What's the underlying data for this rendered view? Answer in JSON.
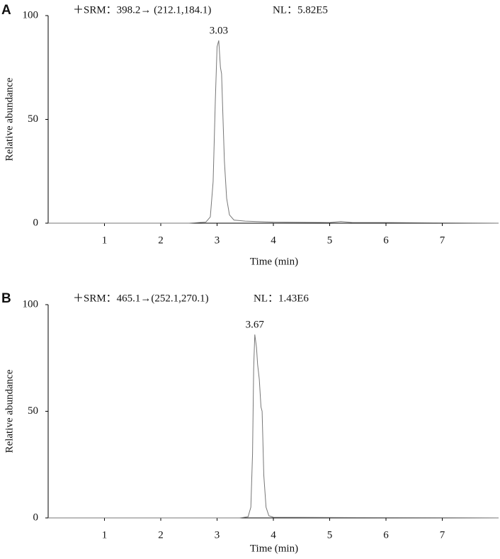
{
  "chart_data": [
    {
      "type": "line",
      "panel_label": "A",
      "header": "＋SRM：398.2→ (212.1,184.1)",
      "nl": "NL：5.82E5",
      "x_label": "Time (min)",
      "y_label": "Relative abundance",
      "peak_label": "3.03",
      "xlim": [
        0,
        8
      ],
      "ylim": [
        0,
        100
      ],
      "xticks": [
        1,
        2,
        3,
        4,
        5,
        6,
        7
      ],
      "yticks": [
        0,
        50,
        100
      ],
      "series": [
        {
          "color": "#777777",
          "x": [
            0,
            2.5,
            2.8,
            2.88,
            2.93,
            2.97,
            3.0,
            3.03,
            3.06,
            3.08,
            3.1,
            3.13,
            3.17,
            3.22,
            3.3,
            3.5,
            4.0,
            5.0,
            5.2,
            5.4,
            6.0,
            8.0
          ],
          "values": [
            0,
            0,
            0.5,
            3,
            20,
            60,
            85,
            88,
            75,
            72,
            55,
            30,
            12,
            4,
            1.5,
            1,
            0.5,
            0.3,
            0.8,
            0.3,
            0.3,
            0
          ]
        }
      ]
    },
    {
      "type": "line",
      "panel_label": "B",
      "header": "＋SRM：465.1→(252.1,270.1)",
      "nl": "NL：1.43E6",
      "x_label": "Time (min)",
      "y_label": "Relative abundance",
      "peak_label": "3.67",
      "xlim": [
        0,
        8
      ],
      "ylim": [
        0,
        100
      ],
      "xticks": [
        1,
        2,
        3,
        4,
        5,
        6,
        7
      ],
      "yticks": [
        0,
        50,
        100
      ],
      "series": [
        {
          "color": "#777777",
          "x": [
            0,
            3.4,
            3.55,
            3.6,
            3.63,
            3.65,
            3.67,
            3.7,
            3.72,
            3.75,
            3.78,
            3.8,
            3.83,
            3.87,
            3.92,
            4.0,
            8.0
          ],
          "values": [
            0,
            0,
            0.5,
            5,
            30,
            70,
            86,
            80,
            72,
            65,
            52,
            50,
            20,
            5,
            1,
            0.3,
            0
          ]
        }
      ]
    }
  ]
}
